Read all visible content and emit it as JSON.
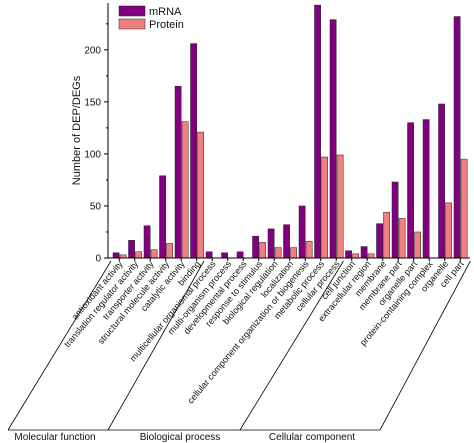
{
  "chart_data": {
    "type": "bar",
    "title": "",
    "xlabel": "",
    "ylabel": "Number of DEP/DEGs",
    "ylim": [
      0,
      245
    ],
    "yticks": [
      0,
      50,
      100,
      150,
      200
    ],
    "legend_position": "top-left",
    "categories": [
      "antioxidant activity",
      "translation regulator activity",
      "transporter activity",
      "structural molecule activity",
      "catalytic activity",
      "binding",
      "multicellular organismal process",
      "multi-organism process",
      "developmental process",
      "response to stimulus",
      "biological regulation",
      "localization",
      "cellular component organization or biogenesis",
      "metabolic process",
      "cellular process",
      "cell junction",
      "extracellular region",
      "membrane",
      "membrane part",
      "organelle part",
      "protein-containing complex",
      "organelle",
      "cell part"
    ],
    "groups": [
      {
        "name": "Molecular function",
        "start": 0,
        "end": 5
      },
      {
        "name": "Biological process",
        "start": 6,
        "end": 14
      },
      {
        "name": "Cellular component",
        "start": 15,
        "end": 22
      }
    ],
    "series": [
      {
        "name": "mRNA",
        "color": "#800080",
        "values": [
          5,
          17,
          31,
          79,
          165,
          206,
          6,
          5,
          6,
          21,
          28,
          32,
          50,
          243,
          229,
          7,
          11,
          33,
          73,
          130,
          133,
          148,
          232
        ]
      },
      {
        "name": "Protein",
        "color": "#f08080",
        "values": [
          3,
          6,
          8,
          14,
          131,
          121,
          0,
          0,
          0,
          15,
          10,
          10,
          16,
          97,
          99,
          4,
          4,
          44,
          38,
          25,
          0,
          53,
          95
        ]
      }
    ]
  }
}
